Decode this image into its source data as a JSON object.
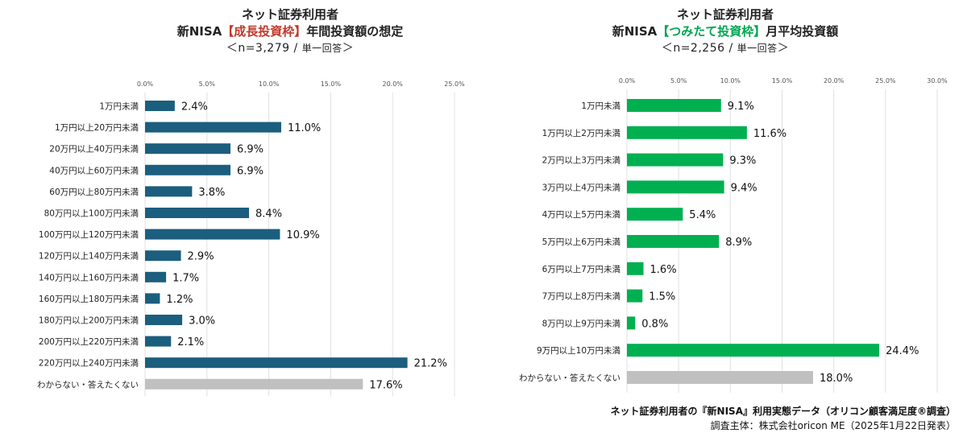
{
  "chart_data": [
    {
      "type": "bar",
      "orientation": "horizontal",
      "title_line1": "ネット証券利用者",
      "title_line2_prefix": "新NISA",
      "title_line2_highlight": "【成長投資枠】",
      "title_line2_suffix": "年間投資額の想定",
      "title_line3_main": "＜n=3,279 / ",
      "title_line3_small": "単一回答",
      "title_line3_end": "＞",
      "xlim": [
        0,
        25
      ],
      "ticks": [
        "0.0%",
        "5.0%",
        "10.0%",
        "15.0%",
        "20.0%",
        "25.0%"
      ],
      "tick_values": [
        0,
        5,
        10,
        15,
        20,
        25
      ],
      "grid": true,
      "categories": [
        "1万円未満",
        "1万円以上20万円未満",
        "20万円以上40万円未満",
        "40万円以上60万円未満",
        "60万円以上80万円未満",
        "80万円以上100万円未満",
        "100万円以上120万円未満",
        "120万円以上140万円未満",
        "140万円以上160万円未満",
        "160万円以上180万円未満",
        "180万円以上200万円未満",
        "200万円以上220万円未満",
        "220万円以上240万円未満",
        "わからない・答えたくない"
      ],
      "values": [
        2.4,
        11.0,
        6.9,
        6.9,
        3.8,
        8.4,
        10.9,
        2.9,
        1.7,
        1.2,
        3.0,
        2.1,
        21.2,
        17.6
      ],
      "labels": [
        "2.4%",
        "11.0%",
        "6.9%",
        "6.9%",
        "3.8%",
        "8.4%",
        "10.9%",
        "2.9%",
        "1.7%",
        "1.2%",
        "3.0%",
        "2.1%",
        "21.2%",
        "17.6%"
      ],
      "colors": {
        "bar": "#1b5e7e",
        "last_bar": "#c0c0c0",
        "grid": "#e0e0e0"
      }
    },
    {
      "type": "bar",
      "orientation": "horizontal",
      "title_line1": "ネット証券利用者",
      "title_line2_prefix": "新NISA",
      "title_line2_highlight": "【つみたて投資枠】",
      "title_line2_suffix": "月平均投資額",
      "title_line3_main": "＜n=2,256 / ",
      "title_line3_small": "単一回答",
      "title_line3_end": "＞",
      "xlim": [
        0,
        30
      ],
      "ticks": [
        "0.0%",
        "5.0%",
        "10.0%",
        "15.0%",
        "20.0%",
        "25.0%",
        "30.0%"
      ],
      "tick_values": [
        0,
        5,
        10,
        15,
        20,
        25,
        30
      ],
      "grid": true,
      "categories": [
        "1万円未満",
        "1万円以上2万円未満",
        "2万円以上3万円未満",
        "3万円以上4万円未満",
        "4万円以上5万円未満",
        "5万円以上6万円未満",
        "6万円以上7万円未満",
        "7万円以上8万円未満",
        "8万円以上9万円未満",
        "9万円以上10万円未満",
        "わからない・答えたくない"
      ],
      "values": [
        9.1,
        11.6,
        9.3,
        9.4,
        5.4,
        8.9,
        1.6,
        1.5,
        0.8,
        24.4,
        18.0
      ],
      "labels": [
        "9.1%",
        "11.6%",
        "9.3%",
        "9.4%",
        "5.4%",
        "8.9%",
        "1.6%",
        "1.5%",
        "0.8%",
        "24.4%",
        "18.0%"
      ],
      "colors": {
        "bar": "#00b050",
        "last_bar": "#c0c0c0",
        "grid": "#e0e0e0"
      }
    }
  ],
  "footnote": {
    "line1": "ネット証券利用者の『新NISA』利用実態データ（オリコン顧客満足度®調査）",
    "line2": "調査主体：株式会社oricon ME（2025年1月22日発表）"
  }
}
